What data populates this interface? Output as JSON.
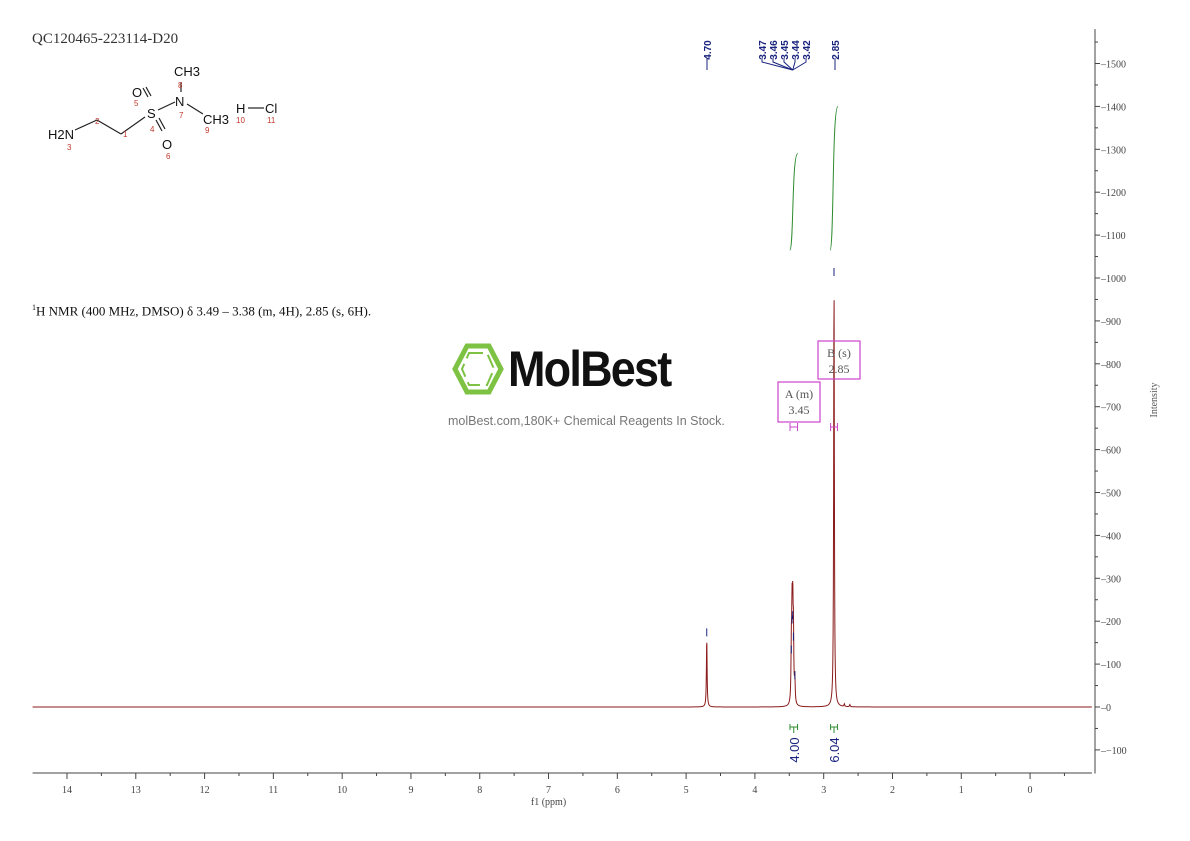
{
  "sample_id": "QC120465-223114-D20",
  "nmr_description": {
    "sup": "1",
    "text": "H NMR (400 MHz, DMSO) δ 3.49 – 3.38 (m, 4H), 2.85 (s, 6H)."
  },
  "structure": {
    "atoms": [
      "H2N",
      "CH3",
      "S",
      "N",
      "CH3",
      "O",
      "O",
      "H",
      "Cl"
    ],
    "numbers": [
      "1",
      "2",
      "3",
      "4",
      "5",
      "6",
      "7",
      "8",
      "9",
      "10",
      "11"
    ]
  },
  "watermark": {
    "brand": "MolBest",
    "tagline": "molBest.com,180K+ Chemical Reagents In Stock.",
    "logo_color": "#7dc242"
  },
  "colors": {
    "spectrum": "#8b1a1a",
    "integral": "#2e8b2e",
    "peak_label": "#1a237e",
    "annotation": "#cc44cc"
  },
  "chart_data": {
    "type": "line",
    "xlabel": "f1 (ppm)",
    "ylabel": "Intensity",
    "xlim": [
      14.5,
      -0.9
    ],
    "ylim": [
      -155,
      1580
    ],
    "x_reversed": true,
    "x_ticks": [
      "14",
      "13",
      "12",
      "11",
      "10",
      "9",
      "8",
      "7",
      "6",
      "5",
      "4",
      "3",
      "2",
      "1",
      "0"
    ],
    "y_ticks": [
      "-100",
      "0",
      "100",
      "200",
      "300",
      "400",
      "500",
      "600",
      "700",
      "800",
      "900",
      "1000",
      "1100",
      "1200",
      "1300",
      "1400",
      "1500"
    ],
    "peaks": [
      {
        "ppm": 4.7,
        "height": 160
      },
      {
        "ppm": 3.47,
        "height": 120
      },
      {
        "ppm": 3.46,
        "height": 190
      },
      {
        "ppm": 3.45,
        "height": 200
      },
      {
        "ppm": 3.44,
        "height": 150
      },
      {
        "ppm": 3.42,
        "height": 60
      },
      {
        "ppm": 2.85,
        "height": 1000
      },
      {
        "ppm": 2.7,
        "height": 6
      },
      {
        "ppm": 2.62,
        "height": 5
      }
    ],
    "peak_labels": [
      "4.70",
      "3.47",
      "3.46",
      "3.45",
      "3.44",
      "3.42",
      "2.85"
    ],
    "integrals": [
      {
        "from": 3.49,
        "to": 3.38,
        "value": "4.00",
        "curve_start": 1065,
        "curve_end": 1290
      },
      {
        "from": 2.9,
        "to": 2.8,
        "value": "6.04",
        "curve_start": 1065,
        "curve_end": 1400
      }
    ],
    "multiplets": [
      {
        "label": "A (m)",
        "shift": "3.45",
        "from": 3.49,
        "to": 3.38
      },
      {
        "label": "B (s)",
        "shift": "2.85",
        "from": 2.9,
        "to": 2.8
      }
    ]
  }
}
